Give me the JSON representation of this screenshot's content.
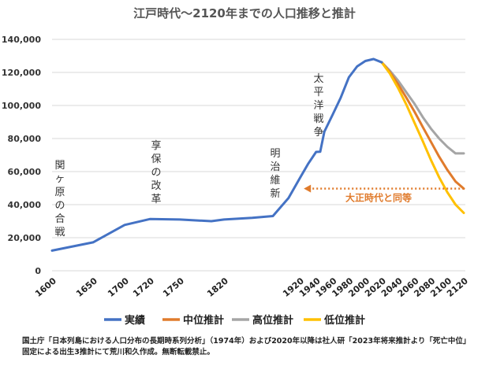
{
  "chart_data": {
    "type": "line",
    "title": "江戸時代～2120年までの人口推移と推計",
    "ylim": [
      0,
      140000
    ],
    "yticks": [
      0,
      20000,
      40000,
      60000,
      80000,
      100000,
      120000,
      140000
    ],
    "ytick_labels": [
      "0",
      "20,000",
      "40,000",
      "60,000",
      "80,000",
      "100,000",
      "120,000",
      "140,000"
    ],
    "xticks": [
      1600,
      1650,
      1700,
      1720,
      1750,
      1820,
      1920,
      1940,
      1960,
      1980,
      2000,
      2020,
      2040,
      2060,
      2080,
      2100,
      2120
    ],
    "grid": true,
    "legend_position": "bottom",
    "series": [
      {
        "name": "実績",
        "color": "#4472c4",
        "points": [
          [
            1600,
            12200
          ],
          [
            1650,
            17200
          ],
          [
            1700,
            27700
          ],
          [
            1720,
            31300
          ],
          [
            1750,
            31000
          ],
          [
            1800,
            30000
          ],
          [
            1820,
            31000
          ],
          [
            1850,
            32000
          ],
          [
            1872,
            33100
          ],
          [
            1900,
            44000
          ],
          [
            1920,
            55900
          ],
          [
            1930,
            64500
          ],
          [
            1940,
            71900
          ],
          [
            1945,
            72000
          ],
          [
            1950,
            84100
          ],
          [
            1960,
            94300
          ],
          [
            1970,
            104700
          ],
          [
            1980,
            117100
          ],
          [
            1990,
            123600
          ],
          [
            2000,
            126900
          ],
          [
            2010,
            128100
          ],
          [
            2020,
            126100
          ]
        ]
      },
      {
        "name": "中位推計",
        "color": "#e07b2c",
        "points": [
          [
            2020,
            126100
          ],
          [
            2030,
            120100
          ],
          [
            2040,
            112800
          ],
          [
            2050,
            104700
          ],
          [
            2060,
            96200
          ],
          [
            2070,
            87000
          ],
          [
            2080,
            78000
          ],
          [
            2090,
            69000
          ],
          [
            2100,
            61000
          ],
          [
            2110,
            54000
          ],
          [
            2120,
            49700
          ]
        ]
      },
      {
        "name": "高位推計",
        "color": "#a5a5a5",
        "points": [
          [
            2020,
            126100
          ],
          [
            2030,
            121000
          ],
          [
            2040,
            115000
          ],
          [
            2050,
            108000
          ],
          [
            2060,
            101000
          ],
          [
            2070,
            93000
          ],
          [
            2080,
            86000
          ],
          [
            2090,
            80000
          ],
          [
            2100,
            75000
          ],
          [
            2110,
            71000
          ],
          [
            2120,
            71000
          ]
        ]
      },
      {
        "name": "低位推計",
        "color": "#ffc000",
        "points": [
          [
            2020,
            126100
          ],
          [
            2030,
            119300
          ],
          [
            2040,
            110500
          ],
          [
            2050,
            100500
          ],
          [
            2060,
            89500
          ],
          [
            2070,
            78500
          ],
          [
            2080,
            67000
          ],
          [
            2090,
            56500
          ],
          [
            2100,
            47500
          ],
          [
            2110,
            40000
          ],
          [
            2120,
            35000
          ]
        ]
      }
    ],
    "annotations": [
      {
        "text": "関ヶ原の合戦",
        "x": 1600,
        "y": 45000
      },
      {
        "text": "享保の改革",
        "x": 1720,
        "y": 50000
      },
      {
        "text": "明治維新",
        "x": 1872,
        "y": 50000
      },
      {
        "text": "太平洋戦争",
        "x": 1945,
        "y": 80000
      },
      {
        "text": "大正時代と同等",
        "x": 2050,
        "y": 49000,
        "color": "#e07b2c"
      }
    ],
    "reference_line": {
      "y": 49700,
      "x_from": 1925,
      "x_to": 2120,
      "color": "#e07b2c",
      "style": "dotted"
    }
  },
  "footnote": "国土庁「日本列島における人口分布の長期時系列分析」（1974年）および2020年以降は社人研「2023年将来推計より「死亡中位」固定による出生3推計にて荒川和久作成。無断転載禁止。"
}
